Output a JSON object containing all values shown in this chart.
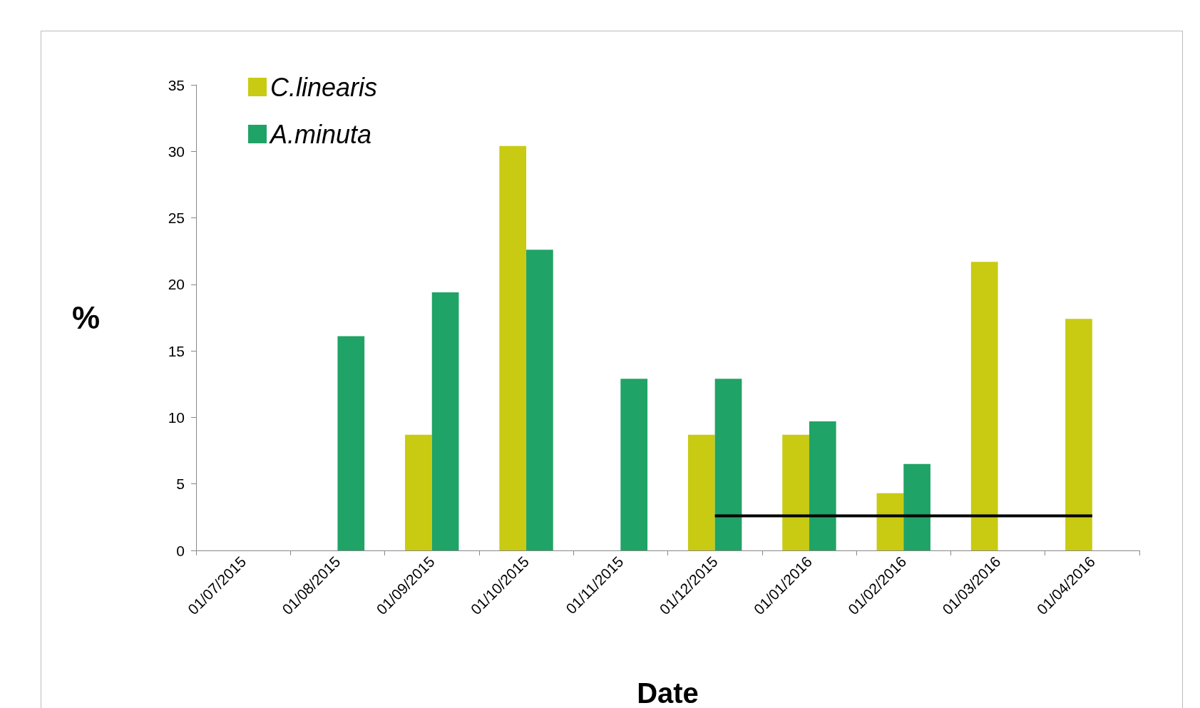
{
  "chart_data": {
    "type": "bar",
    "xlabel": "Date",
    "ylabel": "%",
    "categories": [
      "01/07/2015",
      "01/08/2015",
      "01/09/2015",
      "01/10/2015",
      "01/11/2015",
      "01/12/2015",
      "01/01/2016",
      "01/02/2016",
      "01/03/2016",
      "01/04/2016"
    ],
    "series": [
      {
        "name": "C.linearis",
        "color": "#c8cb12",
        "values": [
          0,
          0,
          8.7,
          30.4,
          0,
          8.7,
          8.7,
          4.3,
          21.7,
          17.4
        ]
      },
      {
        "name": "A.minuta",
        "color": "#20a366",
        "values": [
          0,
          16.1,
          19.4,
          22.6,
          12.9,
          12.9,
          9.7,
          6.5,
          0,
          0
        ]
      },
      {
        "type": "line",
        "color": "#000000",
        "marker": "none",
        "values": [
          null,
          null,
          null,
          null,
          null,
          2.6,
          2.6,
          2.6,
          2.6,
          2.6
        ]
      }
    ],
    "ylim": [
      0,
      35
    ],
    "yticks": [
      0,
      5,
      10,
      15,
      20,
      25,
      30,
      35
    ],
    "grid": false,
    "legend": "top left"
  }
}
